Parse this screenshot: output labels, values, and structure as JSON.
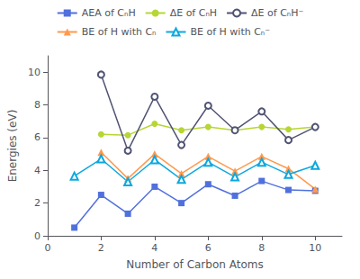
{
  "chart_data": {
    "type": "line",
    "xlabel": "Number of Carbon Atoms",
    "ylabel": "Energies (eV)",
    "x": [
      1,
      2,
      3,
      4,
      5,
      6,
      7,
      8,
      9,
      10
    ],
    "series": [
      {
        "name": "AEA of CₙH",
        "marker": "square",
        "values": [
          0.5,
          2.5,
          1.35,
          3.0,
          2.0,
          3.15,
          2.45,
          3.35,
          2.8,
          2.75
        ]
      },
      {
        "name": "ΔE of CₙH",
        "marker": "circle",
        "values": [
          null,
          6.2,
          6.15,
          6.85,
          6.45,
          6.65,
          6.45,
          6.65,
          6.5,
          6.65
        ]
      },
      {
        "name": "ΔE of CₙH⁻",
        "marker": "open_circle",
        "values": [
          null,
          9.85,
          5.2,
          8.5,
          5.55,
          7.95,
          6.45,
          7.6,
          5.85,
          6.65
        ]
      },
      {
        "name": "BE of H with Cₙ",
        "marker": "triangle",
        "values": [
          null,
          5.1,
          3.5,
          5.0,
          3.8,
          4.85,
          3.95,
          4.85,
          4.1,
          2.85
        ]
      },
      {
        "name": "BE of H with Cₙ⁻",
        "marker": "open_triangle",
        "values": [
          3.65,
          4.7,
          3.3,
          4.65,
          3.45,
          4.5,
          3.6,
          4.5,
          3.75,
          4.3
        ]
      }
    ],
    "xlim": [
      0,
      11
    ],
    "ylim": [
      0,
      11
    ],
    "xticks": [
      0,
      2,
      4,
      6,
      8,
      10
    ],
    "yticks": [
      0,
      2,
      4,
      6,
      8,
      10
    ],
    "grid": false,
    "legend": "top"
  }
}
